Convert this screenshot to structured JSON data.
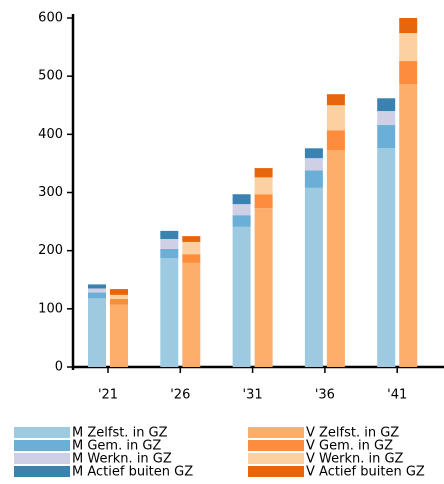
{
  "chart_data": {
    "type": "bar",
    "stacked": true,
    "categories": [
      "'21",
      "'26",
      "'31",
      "'36",
      "'41"
    ],
    "ylim": [
      0,
      600
    ],
    "yticks": [
      0,
      100,
      200,
      300,
      400,
      500,
      600
    ],
    "series": [
      {
        "name": "M Zelfst. in GZ",
        "group": "M",
        "color": "#9ecae1",
        "values": [
          118,
          187,
          241,
          308,
          376
        ]
      },
      {
        "name": "M Gem. in GZ",
        "group": "M",
        "color": "#6baed6",
        "values": [
          10,
          16,
          20,
          30,
          40
        ]
      },
      {
        "name": "M Werkn. in GZ",
        "group": "M",
        "color": "#cfd0e6",
        "values": [
          7,
          17,
          19,
          21,
          24
        ]
      },
      {
        "name": "M Actief buiten GZ",
        "group": "M",
        "color": "#3b82b0",
        "values": [
          7,
          14,
          17,
          17,
          22
        ]
      },
      {
        "name": "V Zelfst. in GZ",
        "group": "V",
        "color": "#fdae6b",
        "values": [
          107,
          179,
          273,
          373,
          486
        ]
      },
      {
        "name": "V Gem. in GZ",
        "group": "V",
        "color": "#fd8d3c",
        "values": [
          10,
          15,
          24,
          34,
          40
        ]
      },
      {
        "name": "V Werkn. in GZ",
        "group": "V",
        "color": "#fdd0a2",
        "values": [
          7,
          21,
          29,
          43,
          48
        ]
      },
      {
        "name": "V Actief buiten GZ",
        "group": "V",
        "color": "#e6650d",
        "values": [
          10,
          10,
          16,
          19,
          26
        ]
      }
    ]
  }
}
